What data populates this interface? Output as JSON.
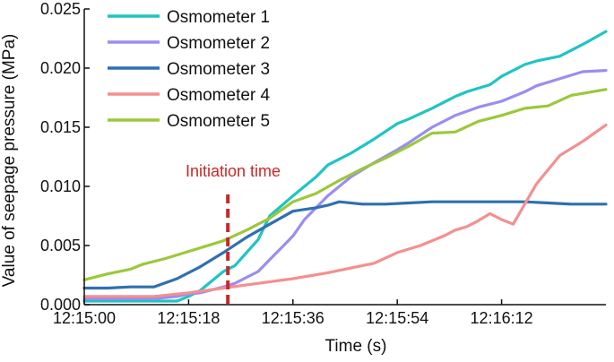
{
  "chart_data": {
    "type": "line",
    "title": "",
    "xlabel": "Time (s)",
    "ylabel": "Value of seepage pressure (MPa)",
    "xlim": [
      0,
      90
    ],
    "ylim": [
      0,
      0.025
    ],
    "x_ticks": [
      {
        "value": 0,
        "label": "12:15:00"
      },
      {
        "value": 18,
        "label": "12:15:18"
      },
      {
        "value": 36,
        "label": "12:15:36"
      },
      {
        "value": 54,
        "label": "12:15:54"
      },
      {
        "value": 72,
        "label": "12:16:12"
      }
    ],
    "y_ticks": [
      {
        "value": 0.0,
        "label": "0.000"
      },
      {
        "value": 0.005,
        "label": "0.005"
      },
      {
        "value": 0.01,
        "label": "0.010"
      },
      {
        "value": 0.015,
        "label": "0.015"
      },
      {
        "value": 0.02,
        "label": "0.020"
      },
      {
        "value": 0.025,
        "label": "0.025"
      }
    ],
    "legend_position": "top-left",
    "annotation": {
      "text": "Initiation time",
      "x": 24,
      "color": "#c82828"
    },
    "series": [
      {
        "name": "Osmometer 1",
        "color": "#1fc4c4",
        "x": [
          0,
          6,
          12,
          16,
          18,
          20,
          24,
          26,
          30,
          32,
          36,
          40,
          42,
          46,
          50,
          54,
          56,
          60,
          64,
          66,
          70,
          72,
          76,
          78,
          82,
          86,
          90
        ],
        "values": [
          0.0003,
          0.0003,
          0.0003,
          0.0003,
          0.0007,
          0.0012,
          0.0028,
          0.0033,
          0.0055,
          0.0075,
          0.0092,
          0.0108,
          0.0118,
          0.0128,
          0.014,
          0.0153,
          0.0157,
          0.0166,
          0.0176,
          0.018,
          0.0186,
          0.0193,
          0.0203,
          0.0206,
          0.021,
          0.022,
          0.0231
        ]
      },
      {
        "name": "Osmometer 2",
        "color": "#9a8ef0",
        "x": [
          0,
          6,
          12,
          16,
          18,
          20,
          24,
          26,
          30,
          32,
          34,
          36,
          38,
          42,
          46,
          50,
          54,
          56,
          60,
          64,
          68,
          72,
          76,
          78,
          82,
          86,
          90
        ],
        "values": [
          0.0005,
          0.0005,
          0.0005,
          0.0007,
          0.0009,
          0.001,
          0.0015,
          0.0018,
          0.0028,
          0.0038,
          0.0048,
          0.0058,
          0.0072,
          0.0092,
          0.0108,
          0.012,
          0.0131,
          0.0137,
          0.015,
          0.016,
          0.0167,
          0.0172,
          0.018,
          0.0185,
          0.0191,
          0.0197,
          0.0198
        ]
      },
      {
        "name": "Osmometer 3",
        "color": "#2f6fb2",
        "x": [
          0,
          4,
          8,
          12,
          16,
          20,
          24,
          28,
          32,
          36,
          40,
          42,
          44,
          48,
          52,
          56,
          60,
          64,
          68,
          72,
          76,
          80,
          84,
          90
        ],
        "values": [
          0.0014,
          0.0014,
          0.0015,
          0.0015,
          0.0022,
          0.0032,
          0.0044,
          0.0057,
          0.0068,
          0.0079,
          0.0082,
          0.0084,
          0.0087,
          0.0085,
          0.0085,
          0.0086,
          0.0087,
          0.0087,
          0.0087,
          0.0087,
          0.0087,
          0.0086,
          0.0085,
          0.0085
        ]
      },
      {
        "name": "Osmometer 4",
        "color": "#f58f8f",
        "x": [
          0,
          6,
          12,
          18,
          24,
          30,
          36,
          42,
          46,
          50,
          54,
          58,
          62,
          64,
          66,
          68,
          70,
          72,
          74,
          78,
          82,
          86,
          90
        ],
        "values": [
          0.0007,
          0.0007,
          0.0007,
          0.001,
          0.0014,
          0.0018,
          0.0022,
          0.0027,
          0.0031,
          0.0035,
          0.0044,
          0.005,
          0.0058,
          0.0063,
          0.0066,
          0.0071,
          0.0077,
          0.0072,
          0.0068,
          0.0102,
          0.0126,
          0.0138,
          0.0152
        ]
      },
      {
        "name": "Osmometer 5",
        "color": "#9cc83a",
        "x": [
          0,
          4,
          8,
          10,
          14,
          18,
          22,
          24,
          28,
          32,
          36,
          40,
          44,
          48,
          52,
          56,
          60,
          64,
          68,
          72,
          76,
          80,
          84,
          90
        ],
        "values": [
          0.0021,
          0.0026,
          0.003,
          0.0034,
          0.0039,
          0.0045,
          0.0051,
          0.0054,
          0.0063,
          0.0073,
          0.0087,
          0.0094,
          0.0105,
          0.0115,
          0.0124,
          0.0134,
          0.0145,
          0.0146,
          0.0155,
          0.016,
          0.0166,
          0.0168,
          0.0177,
          0.0182
        ]
      }
    ]
  }
}
